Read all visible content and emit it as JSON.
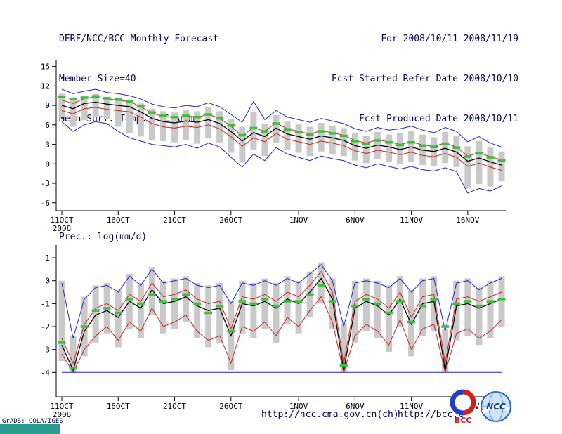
{
  "header": {
    "title": "DERF/NCC/BCC Monthly Forecast",
    "member_size": "Member Size=40",
    "variable": "Mean Surf. Temp.: °C Anom.",
    "valid_range": "For 2008/10/11-2008/11/19",
    "refer_date": "Fcst Started Refer Date 2008/10/10",
    "produced_date": "Fcst Produced Date 2008/10/11"
  },
  "footer": {
    "credit": "GrADS: COLA/IGES",
    "url_ncc": "http://ncc.cma.gov.cn(ch)",
    "url_bcc": "http://bcc.c",
    "bcc_logo_label": "BCC",
    "ncc_logo_label": "NCC"
  },
  "colors": {
    "header_text": "#000050",
    "bar": "#c9c9c9",
    "axis": "#000000",
    "max_min_line": "#2222cc",
    "quartile_line": "#cc2222",
    "mean_line": "#000000",
    "obs_dash": "#3fbf3f",
    "artifact_teal": "#2a9d8f"
  },
  "chart_data": [
    {
      "type": "line",
      "title": "Mean Surf. Temp.: °C Anom.",
      "xlabel": "",
      "ylabel": "",
      "ylim": [
        -6,
        15
      ],
      "ydraw": [
        -7,
        15.5
      ],
      "yticks": [
        15,
        12,
        9,
        6,
        3,
        0,
        -3,
        -6
      ],
      "grid": false,
      "legend": "none",
      "x_count": 40,
      "xticks": [
        {
          "index": 0,
          "label": "11OCT",
          "sublabel": "2008"
        },
        {
          "index": 5,
          "label": "16OCT"
        },
        {
          "index": 10,
          "label": "21OCT"
        },
        {
          "index": 15,
          "label": "26OCT"
        },
        {
          "index": 21,
          "label": "1NOV"
        },
        {
          "index": 26,
          "label": "6NOV"
        },
        {
          "index": 31,
          "label": "11NOV"
        },
        {
          "index": 36,
          "label": "16NOV"
        }
      ],
      "bars": {
        "top": [
          10.8,
          10.1,
          10.5,
          10.8,
          10.3,
          10.1,
          9.8,
          9.3,
          8.5,
          8.1,
          7.9,
          8.3,
          8.1,
          8.7,
          8.1,
          6.9,
          5.7,
          8.0,
          6.1,
          7.5,
          6.5,
          6.1,
          5.7,
          6.3,
          5.9,
          5.5,
          4.7,
          4.3,
          4.9,
          4.5,
          4.7,
          5.1,
          4.5,
          4.1,
          4.9,
          4.3,
          2.7,
          3.5,
          2.5,
          1.9
        ],
        "bottom": [
          7.2,
          5.7,
          6.7,
          7.2,
          6.9,
          5.7,
          4.7,
          4.2,
          3.7,
          3.5,
          3.3,
          3.7,
          3.1,
          3.9,
          3.3,
          1.7,
          0.2,
          2.2,
          1.2,
          3.2,
          2.2,
          1.7,
          1.2,
          1.9,
          1.5,
          1.2,
          0.5,
          0.1,
          0.7,
          0.3,
          -0.1,
          0.3,
          -0.2,
          -0.4,
          0.1,
          -0.5,
          -3.8,
          -3.1,
          -3.5,
          -2.7
        ]
      },
      "series": [
        {
          "name": "ensemble-max",
          "color": "#2222cc",
          "width": 1,
          "values": [
            11.5,
            10.8,
            11.2,
            11.5,
            11.0,
            10.8,
            10.5,
            10.0,
            9.2,
            8.8,
            8.6,
            9.0,
            8.8,
            9.4,
            8.8,
            7.6,
            6.4,
            9.6,
            6.8,
            8.2,
            7.2,
            6.8,
            6.4,
            7.0,
            6.6,
            6.2,
            5.4,
            5.0,
            5.6,
            5.2,
            5.4,
            5.8,
            5.2,
            4.8,
            5.6,
            5.0,
            3.4,
            4.2,
            3.2,
            2.6
          ]
        },
        {
          "name": "ensemble-min",
          "color": "#2222cc",
          "width": 1,
          "values": [
            6.5,
            5.0,
            6.0,
            6.5,
            6.2,
            5.0,
            4.0,
            3.5,
            3.0,
            2.8,
            2.6,
            3.0,
            2.4,
            3.2,
            2.6,
            1.0,
            -0.5,
            1.5,
            0.5,
            2.5,
            1.5,
            1.0,
            0.5,
            1.2,
            0.8,
            0.5,
            -0.2,
            -0.6,
            0.0,
            -0.4,
            -0.8,
            -0.4,
            -0.9,
            -1.1,
            -0.6,
            -1.2,
            -4.5,
            -3.8,
            -4.2,
            -3.4
          ]
        },
        {
          "name": "upper-quartile",
          "color": "#cc2222",
          "width": 1,
          "values": [
            9.8,
            9.3,
            10.1,
            10.3,
            10.0,
            9.8,
            9.6,
            8.8,
            7.8,
            7.3,
            7.1,
            7.4,
            7.2,
            7.6,
            7.0,
            5.8,
            4.3,
            5.6,
            5.0,
            6.3,
            5.4,
            5.0,
            4.6,
            5.1,
            4.8,
            4.4,
            3.6,
            3.2,
            3.7,
            3.4,
            3.0,
            3.4,
            2.9,
            2.7,
            3.2,
            2.6,
            1.2,
            1.7,
            1.1,
            0.6
          ]
        },
        {
          "name": "lower-quartile",
          "color": "#cc2222",
          "width": 1,
          "values": [
            8.2,
            7.7,
            8.5,
            8.7,
            8.4,
            8.2,
            8.0,
            7.2,
            6.2,
            5.7,
            5.5,
            5.8,
            5.6,
            6.0,
            5.4,
            4.2,
            2.7,
            4.0,
            3.4,
            4.7,
            3.8,
            3.4,
            3.0,
            3.5,
            3.2,
            2.8,
            2.0,
            1.6,
            2.1,
            1.8,
            1.4,
            1.8,
            1.3,
            1.1,
            1.6,
            1.0,
            -0.4,
            0.1,
            -0.5,
            -1.0
          ]
        },
        {
          "name": "ensemble-mean",
          "color": "#000000",
          "width": 1.3,
          "values": [
            9.0,
            8.5,
            9.3,
            9.5,
            9.2,
            9.0,
            8.8,
            8.0,
            7.0,
            6.5,
            6.3,
            6.6,
            6.4,
            6.8,
            6.2,
            5.0,
            3.5,
            4.8,
            4.2,
            5.5,
            4.6,
            4.2,
            3.8,
            4.3,
            4.0,
            3.6,
            2.8,
            2.4,
            2.9,
            2.6,
            2.2,
            2.6,
            2.1,
            1.9,
            2.4,
            1.8,
            0.4,
            0.9,
            0.3,
            -0.2
          ]
        },
        {
          "name": "obs-dash",
          "color": "#3fbf3f",
          "width": 3.5,
          "style": "dash-markers",
          "values": [
            10.3,
            10.0,
            10.2,
            10.4,
            10.1,
            9.9,
            9.6,
            8.9,
            7.9,
            7.4,
            7.2,
            7.4,
            7.2,
            7.6,
            7.0,
            5.9,
            4.4,
            5.5,
            5.0,
            6.2,
            5.3,
            4.9,
            4.5,
            5.0,
            4.7,
            4.3,
            3.5,
            3.1,
            3.6,
            3.3,
            2.9,
            3.3,
            2.8,
            2.6,
            3.1,
            2.5,
            1.1,
            1.6,
            1.0,
            0.5
          ]
        }
      ]
    },
    {
      "type": "line",
      "title": "Prec.: log(mm/d)",
      "xlabel": "",
      "ylabel": "",
      "ylim": [
        -4,
        1
      ],
      "ydraw": [
        -5,
        1.4
      ],
      "yticks": [
        1,
        0,
        -1,
        -2,
        -3,
        -4
      ],
      "grid": false,
      "legend": "none",
      "x_count": 40,
      "xticks": [
        {
          "index": 0,
          "label": "11OCT",
          "sublabel": "2008"
        },
        {
          "index": 5,
          "label": "16OCT"
        },
        {
          "index": 10,
          "label": "21OCT"
        },
        {
          "index": 15,
          "label": "26OCT"
        },
        {
          "index": 21,
          "label": "1NOV"
        },
        {
          "index": 26,
          "label": "6NOV"
        },
        {
          "index": 31,
          "label": "11NOV"
        },
        {
          "index": 36,
          "label": "16NOV"
        }
      ],
      "bars": {
        "top": [
          0.0,
          -2.4,
          -0.7,
          -0.2,
          -0.1,
          -0.4,
          0.3,
          -0.1,
          0.6,
          0.0,
          0.1,
          0.2,
          -0.1,
          -0.2,
          -0.1,
          -0.9,
          0.0,
          -0.1,
          0.1,
          -0.1,
          0.2,
          0.0,
          0.4,
          0.8,
          0.1,
          -1.9,
          0.0,
          0.1,
          0.0,
          -0.2,
          0.2,
          -0.4,
          0.1,
          0.2,
          -2.1,
          0.0,
          0.1,
          -0.3,
          0.0,
          0.2
        ],
        "bottom": [
          -3.5,
          -4.0,
          -3.3,
          -2.7,
          -2.3,
          -2.9,
          -2.1,
          -2.5,
          -1.5,
          -2.3,
          -2.1,
          -1.8,
          -2.5,
          -2.9,
          -2.7,
          -3.9,
          -2.3,
          -2.5,
          -2.1,
          -2.7,
          -1.9,
          -2.3,
          -1.6,
          -1.0,
          -2.1,
          -4.0,
          -2.7,
          -2.2,
          -2.5,
          -3.1,
          -2.0,
          -3.3,
          -2.4,
          -2.2,
          -4.0,
          -2.6,
          -2.4,
          -2.8,
          -2.5,
          -2.0
        ]
      },
      "series": [
        {
          "name": "ensemble-max",
          "color": "#2222cc",
          "width": 1,
          "values": [
            -0.1,
            -2.5,
            -0.8,
            -0.3,
            -0.2,
            -0.5,
            0.2,
            -0.2,
            0.5,
            -0.1,
            0.0,
            0.1,
            -0.2,
            -0.3,
            -0.2,
            -1.0,
            -0.1,
            -0.2,
            0.0,
            -0.2,
            0.1,
            -0.1,
            0.3,
            0.7,
            0.0,
            -2.0,
            -0.1,
            0.0,
            -0.1,
            -0.3,
            0.1,
            -0.5,
            0.0,
            0.1,
            -2.2,
            -0.1,
            0.0,
            -0.4,
            -0.1,
            0.1
          ]
        },
        {
          "name": "ensemble-min",
          "color": "#2222cc",
          "width": 1,
          "values": [
            -4.0,
            -4.0,
            -4.0,
            -4.0,
            -4.0,
            -4.0,
            -4.0,
            -4.0,
            -4.0,
            -4.0,
            -4.0,
            -4.0,
            -4.0,
            -4.0,
            -4.0,
            -4.0,
            -4.0,
            -4.0,
            -4.0,
            -4.0,
            -4.0,
            -4.0,
            -4.0,
            -4.0,
            -4.0,
            -4.0,
            -4.0,
            -4.0,
            -4.0,
            -4.0,
            -4.0,
            -4.0,
            -4.0,
            -4.0,
            -4.0,
            -4.0,
            -4.0,
            -4.0,
            -4.0,
            -4.0
          ]
        },
        {
          "name": "upper-quartile",
          "color": "#cc2222",
          "width": 1,
          "values": [
            -2.5,
            -3.6,
            -1.9,
            -1.2,
            -1.0,
            -1.3,
            -0.6,
            -0.9,
            -0.1,
            -0.7,
            -0.6,
            -0.4,
            -0.8,
            -1.0,
            -0.9,
            -2.1,
            -0.7,
            -0.8,
            -0.6,
            -0.9,
            -0.5,
            -0.7,
            -0.2,
            0.4,
            -0.5,
            -3.6,
            -0.9,
            -0.6,
            -0.8,
            -1.2,
            -0.5,
            -1.6,
            -0.7,
            -0.6,
            -3.6,
            -0.8,
            -0.7,
            -0.9,
            -0.7,
            -0.5
          ]
        },
        {
          "name": "lower-quartile",
          "color": "#cc2222",
          "width": 1,
          "values": [
            -3.2,
            -4.0,
            -3.0,
            -2.4,
            -2.0,
            -2.6,
            -1.8,
            -2.2,
            -1.2,
            -2.0,
            -1.8,
            -1.5,
            -2.2,
            -2.6,
            -2.4,
            -3.6,
            -2.0,
            -2.2,
            -1.8,
            -2.4,
            -1.6,
            -2.0,
            -1.3,
            -0.7,
            -1.8,
            -4.0,
            -2.4,
            -1.9,
            -2.2,
            -2.8,
            -1.7,
            -3.0,
            -2.1,
            -1.9,
            -4.0,
            -2.3,
            -2.1,
            -2.5,
            -2.2,
            -1.7
          ]
        },
        {
          "name": "ensemble-mean",
          "color": "#000000",
          "width": 1.3,
          "values": [
            -2.8,
            -3.9,
            -2.2,
            -1.5,
            -1.3,
            -1.6,
            -0.9,
            -1.2,
            -0.4,
            -1.0,
            -0.9,
            -0.7,
            -1.1,
            -1.3,
            -1.2,
            -2.4,
            -1.0,
            -1.1,
            -0.9,
            -1.2,
            -0.8,
            -1.0,
            -0.5,
            0.1,
            -0.8,
            -3.9,
            -1.2,
            -0.9,
            -1.1,
            -1.5,
            -0.8,
            -1.9,
            -1.0,
            -0.9,
            -3.9,
            -1.1,
            -1.0,
            -1.2,
            -1.0,
            -0.8
          ]
        },
        {
          "name": "obs-dash",
          "color": "#3fbf3f",
          "width": 3.5,
          "style": "dash-markers",
          "values": [
            -2.7,
            -3.8,
            -2.0,
            -1.3,
            -1.2,
            -1.4,
            -0.8,
            -1.0,
            -0.6,
            -0.9,
            -0.8,
            -0.6,
            -1.0,
            -1.4,
            -1.1,
            -2.2,
            -0.9,
            -1.0,
            -0.8,
            -1.1,
            -0.9,
            -0.9,
            -0.6,
            -0.2,
            -0.9,
            -3.7,
            -1.1,
            -0.8,
            -1.0,
            -1.4,
            -0.9,
            -1.8,
            -1.1,
            -0.8,
            -2.0,
            -1.0,
            -0.9,
            -1.1,
            -0.9,
            -0.8
          ]
        }
      ]
    }
  ]
}
